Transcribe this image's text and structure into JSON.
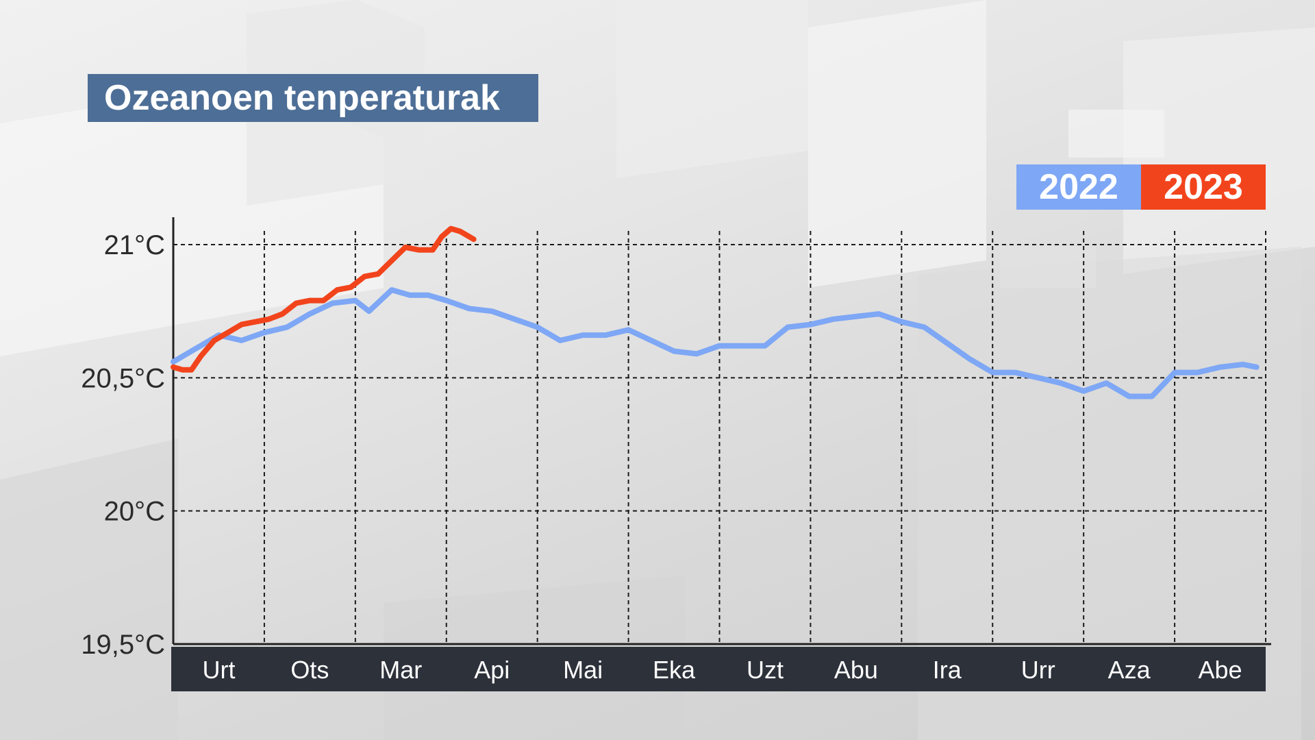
{
  "title": "Ozeanoen tenperaturak",
  "colors": {
    "title_bg": "#4d6e96",
    "s2022": "#7ea7f5",
    "s2023": "#f2441c",
    "xbar": "#2d313a",
    "grid": "#1a1a1a"
  },
  "legend": [
    {
      "label": "2022",
      "color": "#7ea7f5"
    },
    {
      "label": "2023",
      "color": "#f2441c"
    }
  ],
  "chart_data": {
    "type": "line",
    "title": "Ozeanoen tenperaturak",
    "xlabel": "",
    "ylabel": "",
    "categories": [
      "Urt",
      "Ots",
      "Mar",
      "Api",
      "Mai",
      "Eka",
      "Uzt",
      "Abu",
      "Ira",
      "Urr",
      "Aza",
      "Abe"
    ],
    "x_range": [
      0,
      12
    ],
    "ylim": [
      19.5,
      21.0
    ],
    "yticks": [
      19.5,
      20.0,
      20.5,
      21.0
    ],
    "ytick_labels": [
      "19,5°C",
      "20°C",
      "20,5°C",
      "21°C"
    ],
    "grid": true,
    "legend_position": "top-right",
    "series": [
      {
        "name": "2022",
        "color": "#7ea7f5",
        "x": [
          0.0,
          0.25,
          0.5,
          0.75,
          1.0,
          1.25,
          1.5,
          1.75,
          2.0,
          2.15,
          2.4,
          2.6,
          2.8,
          3.0,
          3.25,
          3.5,
          3.75,
          4.0,
          4.25,
          4.5,
          4.75,
          5.0,
          5.25,
          5.5,
          5.75,
          6.0,
          6.25,
          6.5,
          6.75,
          7.0,
          7.25,
          7.5,
          7.75,
          8.0,
          8.25,
          8.5,
          8.75,
          9.0,
          9.25,
          9.5,
          9.75,
          10.0,
          10.25,
          10.5,
          10.75,
          11.0,
          11.25,
          11.5,
          11.75,
          11.9
        ],
        "y": [
          20.56,
          20.61,
          20.66,
          20.64,
          20.67,
          20.69,
          20.74,
          20.78,
          20.79,
          20.75,
          20.83,
          20.81,
          20.81,
          20.79,
          20.76,
          20.75,
          20.72,
          20.69,
          20.64,
          20.66,
          20.66,
          20.68,
          20.64,
          20.6,
          20.59,
          20.62,
          20.62,
          20.62,
          20.69,
          20.7,
          20.72,
          20.73,
          20.74,
          20.71,
          20.69,
          20.63,
          20.57,
          20.52,
          20.52,
          20.5,
          20.48,
          20.45,
          20.48,
          20.43,
          20.43,
          20.52,
          20.52,
          20.54,
          20.55,
          20.54
        ]
      },
      {
        "name": "2023",
        "color": "#f2441c",
        "x": [
          0.0,
          0.1,
          0.2,
          0.3,
          0.45,
          0.6,
          0.75,
          0.9,
          1.05,
          1.2,
          1.35,
          1.5,
          1.65,
          1.8,
          1.95,
          2.1,
          2.25,
          2.4,
          2.55,
          2.7,
          2.85,
          2.95,
          3.05,
          3.15,
          3.25,
          3.3
        ],
        "y": [
          20.54,
          20.53,
          20.53,
          20.58,
          20.64,
          20.67,
          20.7,
          20.71,
          20.72,
          20.74,
          20.78,
          20.79,
          20.79,
          20.83,
          20.84,
          20.88,
          20.89,
          20.94,
          20.99,
          20.98,
          20.98,
          21.03,
          21.06,
          21.05,
          21.03,
          21.02
        ]
      }
    ]
  }
}
